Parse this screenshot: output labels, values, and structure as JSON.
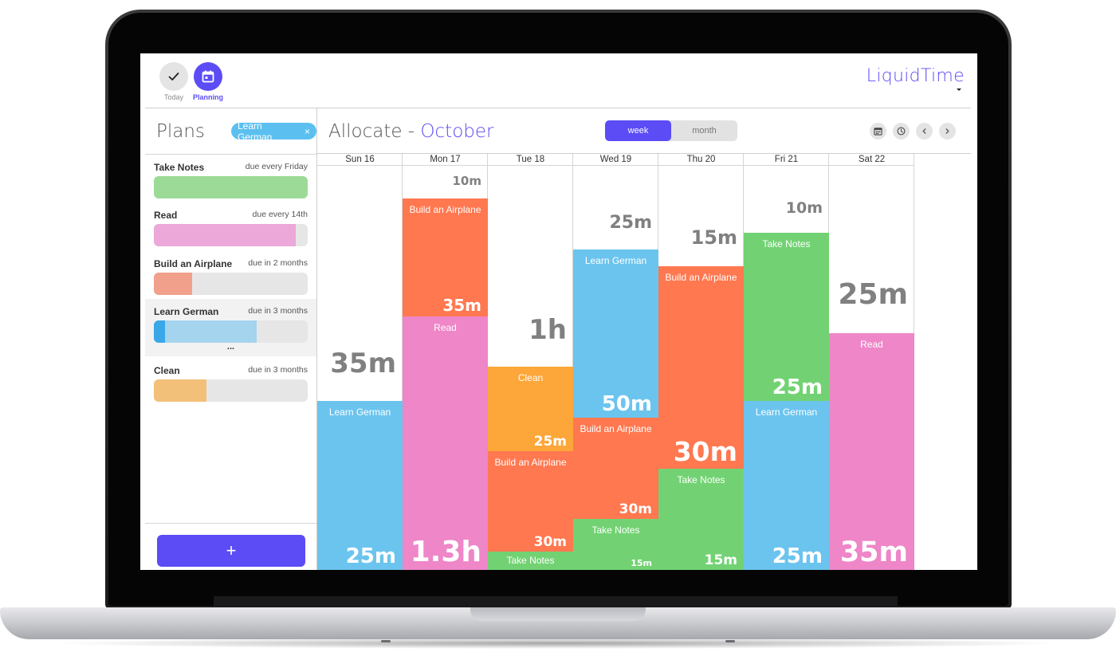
{
  "app": {
    "brand": "LiquidTime"
  },
  "nav": [
    {
      "label": "Today",
      "icon": "check-icon"
    },
    {
      "label": "Planning",
      "icon": "calendar-icon"
    }
  ],
  "plans": {
    "title": "Plans",
    "filter_chip": "Learn German",
    "filter_chip_close": "×",
    "more": "...",
    "add_label": "+",
    "items": [
      {
        "name": "Take Notes",
        "due": "due every Friday",
        "progress": 1.0,
        "color": "#9cdb97"
      },
      {
        "name": "Read",
        "due": "due every 14th",
        "progress": 0.92,
        "color": "#eba8d8"
      },
      {
        "name": "Build an Airplane",
        "due": "due in 2 months",
        "progress": 0.25,
        "color": "#f0a08b"
      },
      {
        "name": "Learn German",
        "due": "due in 3 months",
        "progress": 0.67,
        "color": "#a5d4ee"
      },
      {
        "name": "Clean",
        "due": "due in 3 months",
        "progress": 0.34,
        "color": "#f3c079"
      }
    ]
  },
  "allocate": {
    "title": "Allocate",
    "separator": " - ",
    "month": "October",
    "view_toggle": {
      "week": "week",
      "month": "month",
      "active": "week"
    },
    "tools": [
      "calendar-icon",
      "clock-icon",
      "chevron-left-icon",
      "chevron-right-icon"
    ]
  },
  "colors": {
    "accent": "#5b4cf5",
    "Learn German": "#6bc4ee",
    "Build an Airplane": "#ff7850",
    "Read": "#ee86c8",
    "Clean": "#fda63a",
    "Take Notes": "#72d273"
  },
  "week": [
    {
      "label": "Sun 16",
      "free": "35m",
      "blocks": [
        {
          "name": "Learn German",
          "duration": "25m"
        }
      ]
    },
    {
      "label": "Mon 17",
      "free": "10m",
      "blocks": [
        {
          "name": "Build an Airplane",
          "duration": "35m"
        },
        {
          "name": "Read",
          "duration": "1.3h"
        }
      ]
    },
    {
      "label": "Tue 18",
      "free": "1h",
      "blocks": [
        {
          "name": "Clean",
          "duration": "25m"
        },
        {
          "name": "Build an Airplane",
          "duration": "30m"
        },
        {
          "name": "Take Notes",
          "duration": ""
        }
      ]
    },
    {
      "label": "Wed 19",
      "free": "25m",
      "blocks": [
        {
          "name": "Learn German",
          "duration": "50m"
        },
        {
          "name": "Build an Airplane",
          "duration": "30m"
        },
        {
          "name": "Take Notes",
          "duration": "15m"
        }
      ]
    },
    {
      "label": "Thu 20",
      "free": "15m",
      "blocks": [
        {
          "name": "Build an Airplane",
          "duration": "30m"
        },
        {
          "name": "Take Notes",
          "duration": "15m"
        }
      ]
    },
    {
      "label": "Fri 21",
      "free": "10m",
      "blocks": [
        {
          "name": "Take Notes",
          "duration": "25m"
        },
        {
          "name": "Learn German",
          "duration": "25m"
        }
      ]
    },
    {
      "label": "Sat 22",
      "free": "25m",
      "blocks": [
        {
          "name": "Read",
          "duration": "35m"
        }
      ]
    }
  ]
}
